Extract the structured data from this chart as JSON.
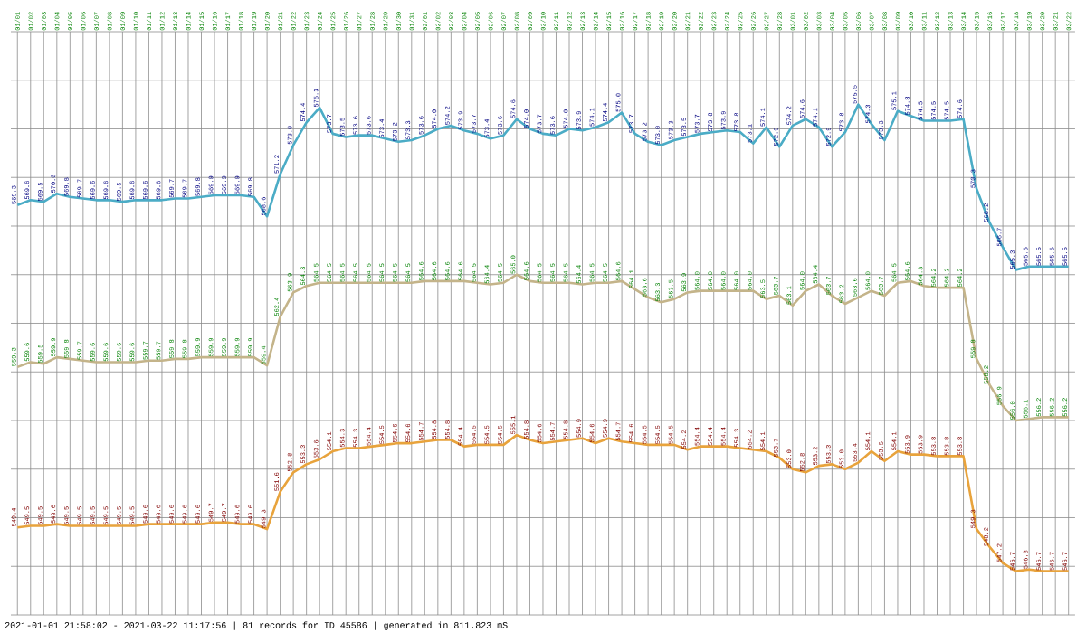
{
  "chart_data": {
    "type": "line",
    "categories": [
      "01/01",
      "01/02",
      "01/03",
      "01/04",
      "01/05",
      "01/06",
      "01/07",
      "01/08",
      "01/09",
      "01/10",
      "01/11",
      "01/12",
      "01/13",
      "01/14",
      "01/15",
      "01/16",
      "01/17",
      "01/18",
      "01/19",
      "01/20",
      "01/21",
      "01/22",
      "01/23",
      "01/24",
      "01/25",
      "01/26",
      "01/27",
      "01/28",
      "01/29",
      "01/30",
      "01/31",
      "02/01",
      "02/02",
      "02/03",
      "02/04",
      "02/05",
      "02/06",
      "02/07",
      "02/08",
      "02/09",
      "02/10",
      "02/11",
      "02/12",
      "02/13",
      "02/14",
      "02/15",
      "02/16",
      "02/17",
      "02/18",
      "02/19",
      "02/20",
      "02/21",
      "02/22",
      "02/23",
      "02/24",
      "02/25",
      "02/26",
      "02/27",
      "02/28",
      "03/01",
      "03/02",
      "03/03",
      "03/04",
      "03/05",
      "03/06",
      "03/07",
      "03/08",
      "03/09",
      "03/10",
      "03/11",
      "03/12",
      "03/13",
      "03/14",
      "03/15",
      "03/16",
      "03/17",
      "03/18",
      "03/19",
      "03/20",
      "03/21",
      "03/22"
    ],
    "series": [
      {
        "color": "#4bacc6",
        "values": [
          569.3,
          569.6,
          569.5,
          570.0,
          569.8,
          569.7,
          569.6,
          569.6,
          569.5,
          569.6,
          569.6,
          569.6,
          569.7,
          569.7,
          569.8,
          569.9,
          569.9,
          569.9,
          569.8,
          568.6,
          571.2,
          573.0,
          574.4,
          575.3,
          573.7,
          573.5,
          573.6,
          573.6,
          573.4,
          573.2,
          573.3,
          573.6,
          574.0,
          574.2,
          573.9,
          573.7,
          573.4,
          573.6,
          574.6,
          574.0,
          573.7,
          573.6,
          574.0,
          573.9,
          574.1,
          574.4,
          575.0,
          573.7,
          573.2,
          573.0,
          573.3,
          573.5,
          573.7,
          573.8,
          573.9,
          573.8,
          573.1,
          574.1,
          572.9,
          574.2,
          574.6,
          574.1,
          572.9,
          573.8,
          575.5,
          574.3,
          573.3,
          575.1,
          574.8,
          574.5,
          574.5,
          574.5,
          574.6,
          570.3,
          568.2,
          566.7,
          565.3,
          565.5,
          565.5,
          565.5,
          565.5
        ],
        "value_labels": [
          "569.3",
          "569.6",
          "569.5",
          "570.0",
          "569.8",
          "569.7",
          "569.6",
          "569.6",
          "569.5",
          "569.6",
          "569.6",
          "569.6",
          "569.7",
          "569.7",
          "569.8",
          "569.9",
          "569.9",
          "569.9",
          "569.8",
          "568.6",
          "571.2",
          "573.0",
          "574.4",
          "575.3",
          "573.7",
          "573.5",
          "573.6",
          "573.6",
          "573.4",
          "573.2",
          "573.3",
          "573.6",
          "574.0",
          "574.2",
          "573.9",
          "573.7",
          "573.4",
          "573.6",
          "574.6",
          "574.0",
          "573.7",
          "573.6",
          "574.0",
          "573.9",
          "574.1",
          "574.4",
          "575.0",
          "573.7",
          "573.2",
          "573.0",
          "573.3",
          "573.5",
          "573.7",
          "573.8",
          "573.9",
          "573.8",
          "573.1",
          "574.1",
          "572.9",
          "574.2",
          "574.6",
          "574.1",
          "572.9",
          "573.8",
          "575.5",
          "574.3",
          "573.3",
          "575.1",
          "574.8",
          "574.5",
          "574.5",
          "574.5",
          "574.6",
          "570.3",
          "568.2",
          "566.7",
          "565.3",
          "565.5",
          "565.5",
          "565.5",
          "565.5"
        ]
      },
      {
        "color": "#c4b48a",
        "values": [
          559.3,
          559.6,
          559.5,
          559.9,
          559.8,
          559.7,
          559.6,
          559.6,
          559.6,
          559.6,
          559.7,
          559.7,
          559.8,
          559.8,
          559.9,
          559.9,
          559.9,
          559.9,
          559.9,
          559.4,
          562.4,
          563.9,
          564.3,
          564.5,
          564.5,
          564.5,
          564.5,
          564.5,
          564.5,
          564.5,
          564.5,
          564.6,
          564.6,
          564.6,
          564.6,
          564.5,
          564.4,
          564.5,
          565.0,
          564.6,
          564.5,
          564.5,
          564.5,
          564.4,
          564.5,
          564.5,
          564.6,
          564.1,
          563.6,
          563.3,
          563.5,
          563.9,
          564.0,
          564.0,
          564.0,
          564.0,
          564.0,
          563.5,
          563.7,
          563.1,
          564.0,
          564.4,
          563.7,
          563.2,
          563.6,
          564.0,
          563.7,
          564.5,
          564.6,
          564.3,
          564.2,
          564.2,
          564.2,
          559.8,
          558.2,
          556.9,
          556.0,
          556.1,
          556.2,
          556.2,
          556.2
        ],
        "value_labels": [
          "559.3",
          "559.6",
          "559.5",
          "559.9",
          "559.8",
          "559.7",
          "559.6",
          "559.6",
          "559.6",
          "559.6",
          "559.7",
          "559.7",
          "559.8",
          "559.8",
          "559.9",
          "559.9",
          "559.9",
          "559.9",
          "559.9",
          "559.4",
          "562.4",
          "563.9",
          "564.3",
          "564.5",
          "564.5",
          "564.5",
          "564.5",
          "564.5",
          "564.5",
          "564.5",
          "564.5",
          "564.6",
          "564.6",
          "564.6",
          "564.6",
          "564.5",
          "564.4",
          "564.5",
          "565.0",
          "564.6",
          "564.5",
          "564.5",
          "564.5",
          "564.4",
          "564.5",
          "564.5",
          "564.6",
          "564.1",
          "563.6",
          "563.3",
          "563.5",
          "563.9",
          "564.0",
          "564.0",
          "564.0",
          "564.0",
          "564.0",
          "563.5",
          "563.7",
          "563.1",
          "564.0",
          "564.4",
          "563.7",
          "563.2",
          "563.6",
          "564.0",
          "563.7",
          "564.5",
          "564.6",
          "564.3",
          "564.2",
          "564.2",
          "564.2",
          "559.8",
          "558.2",
          "556.9",
          "556.0",
          "556.1",
          "556.2",
          "556.2",
          "556.2"
        ]
      },
      {
        "color": "#e8a33c",
        "values": [
          549.4,
          549.5,
          549.5,
          549.6,
          549.5,
          549.5,
          549.5,
          549.5,
          549.5,
          549.5,
          549.6,
          549.6,
          549.6,
          549.6,
          549.6,
          549.7,
          549.7,
          549.6,
          549.6,
          549.3,
          551.6,
          552.8,
          553.3,
          553.6,
          554.1,
          554.3,
          554.3,
          554.4,
          554.5,
          554.6,
          554.6,
          554.7,
          554.8,
          554.8,
          554.4,
          554.5,
          554.5,
          554.5,
          555.1,
          554.8,
          554.6,
          554.7,
          554.8,
          554.9,
          554.6,
          554.9,
          554.7,
          554.6,
          554.5,
          554.5,
          554.5,
          554.2,
          554.4,
          554.4,
          554.4,
          554.3,
          554.2,
          554.1,
          553.7,
          553.0,
          552.8,
          553.2,
          553.3,
          553.0,
          553.4,
          554.1,
          553.5,
          554.1,
          553.9,
          553.9,
          553.8,
          553.8,
          553.8,
          549.3,
          548.2,
          547.2,
          546.7,
          546.8,
          546.7,
          546.7,
          546.7
        ],
        "value_labels": [
          "549.4",
          "549.5",
          "549.5",
          "549.6",
          "549.5",
          "549.5",
          "549.5",
          "549.5",
          "549.5",
          "549.5",
          "549.6",
          "549.6",
          "549.6",
          "549.6",
          "549.6",
          "549.7",
          "549.7",
          "549.6",
          "549.6",
          "549.3",
          "551.6",
          "552.8",
          "553.3",
          "553.6",
          "554.1",
          "554.3",
          "554.3",
          "554.4",
          "554.5",
          "554.6",
          "554.6",
          "554.7",
          "554.8",
          "554.8",
          "554.4",
          "554.5",
          "554.5",
          "554.5",
          "555.1",
          "554.8",
          "554.6",
          "554.7",
          "554.8",
          "554.9",
          "554.6",
          "554.9",
          "554.7",
          "554.6",
          "554.5",
          "554.5",
          "554.5",
          "554.2",
          "554.4",
          "554.4",
          "554.4",
          "554.3",
          "554.2",
          "554.1",
          "553.7",
          "553.0",
          "552.8",
          "553.2",
          "553.3",
          "553.0",
          "553.4",
          "554.1",
          "553.5",
          "554.1",
          "553.9",
          "553.9",
          "553.8",
          "553.8",
          "553.8",
          "549.3",
          "548.2",
          "547.2",
          "546.7",
          "546.8",
          "546.7",
          "546.7",
          "546.7"
        ]
      }
    ],
    "ylim": [
      544,
      580
    ],
    "yticks": [
      {
        "value": 544,
        "label": null
      },
      {
        "value": 547,
        "label": null
      },
      {
        "value": 550,
        "label": null
      },
      {
        "value": 553,
        "label": null
      },
      {
        "value": 556,
        "label": null
      },
      {
        "value": 559,
        "label": null
      },
      {
        "value": 562,
        "label": null
      },
      {
        "value": 565,
        "label": null
      },
      {
        "value": 568,
        "label": null
      },
      {
        "value": 571,
        "label": null
      },
      {
        "value": 574,
        "label": null
      },
      {
        "value": 577,
        "label": null
      },
      {
        "value": 580,
        "label": null
      }
    ],
    "tick_labels": "x",
    "grid": true,
    "annotations": [
      "2021-01-01 21:58:02 - 2021-03-22 11:17:56 | 81 records for ID 45586 | generated in 811.823 mS"
    ]
  }
}
